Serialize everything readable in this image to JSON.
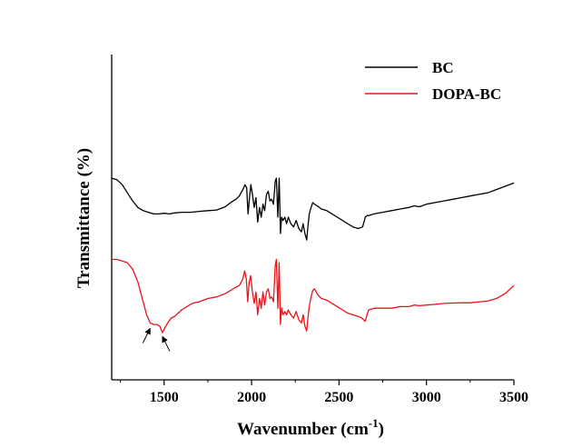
{
  "chart_data": {
    "type": "line",
    "xlabel": "Wavenumber (cm",
    "xlabel_sup": "-1",
    "xlabel_close": ")",
    "ylabel": "Transmittance (%)",
    "xlim": [
      1200,
      3500
    ],
    "ylim": [
      0,
      1
    ],
    "x_ticks": [
      1500,
      2000,
      2500,
      3000,
      3500
    ],
    "y_ticks_shown": false,
    "grid": false,
    "legend_position": "top-right",
    "series": [
      {
        "name": "BC",
        "color": "#000000",
        "x": [
          1200,
          1230,
          1260,
          1290,
          1320,
          1350,
          1380,
          1410,
          1440,
          1470,
          1500,
          1530,
          1560,
          1600,
          1650,
          1700,
          1750,
          1800,
          1850,
          1880,
          1910,
          1930,
          1950,
          1962,
          1972,
          1980,
          1988,
          1996,
          2005,
          2015,
          2025,
          2035,
          2045,
          2055,
          2065,
          2075,
          2085,
          2095,
          2105,
          2115,
          2125,
          2135,
          2142,
          2150,
          2158,
          2165,
          2172,
          2180,
          2190,
          2200,
          2210,
          2225,
          2240,
          2255,
          2270,
          2285,
          2295,
          2305,
          2315,
          2322,
          2330,
          2340,
          2350,
          2360,
          2375,
          2400,
          2430,
          2460,
          2490,
          2520,
          2550,
          2580,
          2610,
          2635,
          2650,
          2660,
          2670,
          2700,
          2750,
          2800,
          2850,
          2900,
          2930,
          2960,
          3000,
          3050,
          3100,
          3150,
          3200,
          3250,
          3300,
          3350,
          3400,
          3450,
          3500
        ],
        "y": [
          0.62,
          0.615,
          0.6,
          0.575,
          0.55,
          0.53,
          0.52,
          0.515,
          0.51,
          0.51,
          0.512,
          0.51,
          0.513,
          0.515,
          0.515,
          0.518,
          0.52,
          0.522,
          0.532,
          0.545,
          0.555,
          0.565,
          0.585,
          0.6,
          0.59,
          0.51,
          0.56,
          0.6,
          0.57,
          0.53,
          0.56,
          0.485,
          0.53,
          0.5,
          0.54,
          0.52,
          0.57,
          0.58,
          0.55,
          0.555,
          0.54,
          0.61,
          0.62,
          0.5,
          0.62,
          0.45,
          0.5,
          0.49,
          0.5,
          0.48,
          0.5,
          0.48,
          0.47,
          0.49,
          0.465,
          0.455,
          0.48,
          0.45,
          0.43,
          0.47,
          0.51,
          0.53,
          0.545,
          0.54,
          0.535,
          0.525,
          0.52,
          0.51,
          0.5,
          0.49,
          0.48,
          0.47,
          0.465,
          0.47,
          0.5,
          0.505,
          0.505,
          0.51,
          0.515,
          0.52,
          0.525,
          0.53,
          0.535,
          0.532,
          0.54,
          0.545,
          0.55,
          0.555,
          0.56,
          0.565,
          0.57,
          0.575,
          0.585,
          0.595,
          0.605
        ]
      },
      {
        "name": "DOPA-BC",
        "color": "#e8151b",
        "x": [
          1200,
          1230,
          1260,
          1290,
          1320,
          1350,
          1380,
          1400,
          1420,
          1440,
          1460,
          1475,
          1490,
          1505,
          1520,
          1540,
          1560,
          1580,
          1600,
          1630,
          1660,
          1700,
          1750,
          1800,
          1850,
          1880,
          1910,
          1930,
          1950,
          1960,
          1970,
          1978,
          1986,
          1995,
          2005,
          2015,
          2025,
          2035,
          2045,
          2055,
          2065,
          2075,
          2085,
          2095,
          2105,
          2115,
          2125,
          2135,
          2142,
          2150,
          2158,
          2165,
          2172,
          2180,
          2190,
          2200,
          2210,
          2225,
          2240,
          2255,
          2270,
          2285,
          2295,
          2305,
          2315,
          2322,
          2330,
          2340,
          2350,
          2360,
          2380,
          2400,
          2430,
          2460,
          2490,
          2520,
          2550,
          2580,
          2610,
          2630,
          2650,
          2660,
          2670,
          2700,
          2750,
          2800,
          2850,
          2900,
          2930,
          2960,
          3000,
          3050,
          3100,
          3150,
          3200,
          3250,
          3300,
          3350,
          3400,
          3450,
          3500
        ],
        "y": [
          0.37,
          0.37,
          0.365,
          0.36,
          0.34,
          0.3,
          0.24,
          0.2,
          0.175,
          0.17,
          0.17,
          0.165,
          0.145,
          0.16,
          0.175,
          0.19,
          0.195,
          0.205,
          0.215,
          0.225,
          0.235,
          0.24,
          0.25,
          0.255,
          0.265,
          0.275,
          0.285,
          0.29,
          0.31,
          0.335,
          0.31,
          0.24,
          0.3,
          0.32,
          0.27,
          0.235,
          0.27,
          0.2,
          0.25,
          0.22,
          0.27,
          0.23,
          0.27,
          0.28,
          0.25,
          0.255,
          0.24,
          0.35,
          0.37,
          0.22,
          0.36,
          0.17,
          0.22,
          0.2,
          0.21,
          0.2,
          0.215,
          0.2,
          0.19,
          0.21,
          0.185,
          0.175,
          0.2,
          0.165,
          0.15,
          0.19,
          0.225,
          0.255,
          0.275,
          0.28,
          0.26,
          0.25,
          0.245,
          0.235,
          0.225,
          0.215,
          0.205,
          0.2,
          0.195,
          0.19,
          0.18,
          0.2,
          0.215,
          0.22,
          0.22,
          0.22,
          0.225,
          0.225,
          0.23,
          0.228,
          0.23,
          0.232,
          0.235,
          0.236,
          0.237,
          0.237,
          0.24,
          0.242,
          0.25,
          0.265,
          0.29
        ]
      }
    ],
    "annotations": [
      {
        "type": "arrow",
        "target_x": 1420,
        "target_y": 0.175,
        "direction": "up-right"
      },
      {
        "type": "arrow",
        "target_x": 1490,
        "target_y": 0.15,
        "direction": "up-left"
      }
    ]
  }
}
